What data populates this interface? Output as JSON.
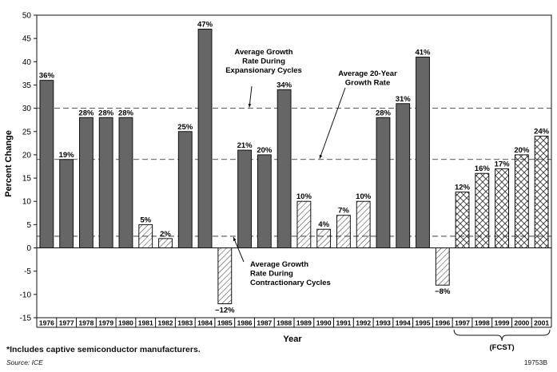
{
  "chart_data": {
    "type": "bar",
    "xlabel": "Year",
    "ylabel": "Percent Change",
    "ylim": [
      -15,
      50
    ],
    "yticks": [
      -15,
      -10,
      -5,
      0,
      5,
      10,
      15,
      20,
      25,
      30,
      35,
      40,
      45,
      50
    ],
    "categories": [
      "1976",
      "1977",
      "1978",
      "1979",
      "1980",
      "1981",
      "1982",
      "1983",
      "1984",
      "1985",
      "1986",
      "1987",
      "1988",
      "1989",
      "1990",
      "1991",
      "1992",
      "1993",
      "1994",
      "1995",
      "1996",
      "1997",
      "1998",
      "1999",
      "2000",
      "2001"
    ],
    "values": [
      36,
      19,
      28,
      28,
      28,
      5,
      2,
      25,
      47,
      -12,
      21,
      20,
      34,
      10,
      4,
      7,
      10,
      28,
      31,
      41,
      -8,
      12,
      16,
      17,
      20,
      24
    ],
    "labels": [
      "36%",
      "19%",
      "28%",
      "28%",
      "28%",
      "5%",
      "2%",
      "25%",
      "47%",
      "−12%",
      "21%",
      "20%",
      "34%",
      "10%",
      "4%",
      "7%",
      "10%",
      "28%",
      "31%",
      "41%",
      "−8%",
      "12%",
      "16%",
      "17%",
      "20%",
      "24%"
    ],
    "styles": [
      "solid",
      "solid",
      "solid",
      "solid",
      "solid",
      "hatch",
      "hatch",
      "solid",
      "solid",
      "hatch",
      "solid",
      "solid",
      "solid",
      "hatch",
      "hatch",
      "hatch",
      "hatch",
      "solid",
      "solid",
      "solid",
      "hatch",
      "cross",
      "cross",
      "cross",
      "cross",
      "cross"
    ],
    "reference_lines": [
      {
        "value": 30,
        "label_lines": [
          "Average Growth",
          "Rate During",
          "Expansionary Cycles"
        ]
      },
      {
        "value": 19,
        "label_lines": [
          "Average 20-Year",
          "Growth Rate"
        ]
      },
      {
        "value": 2.5,
        "label_lines": [
          "Average Growth",
          "Rate During",
          "Contractionary Cycles"
        ]
      }
    ],
    "forecast_label": "(FCST)",
    "forecast_range": [
      "1997",
      "2001"
    ],
    "grid": false,
    "colors": {
      "solid": "#666666",
      "outline": "#111111",
      "pattern": "#333333"
    }
  },
  "footnote": "*Includes captive semiconductor manufacturers.",
  "source": "Source: ICE",
  "doc_id": "19753B"
}
